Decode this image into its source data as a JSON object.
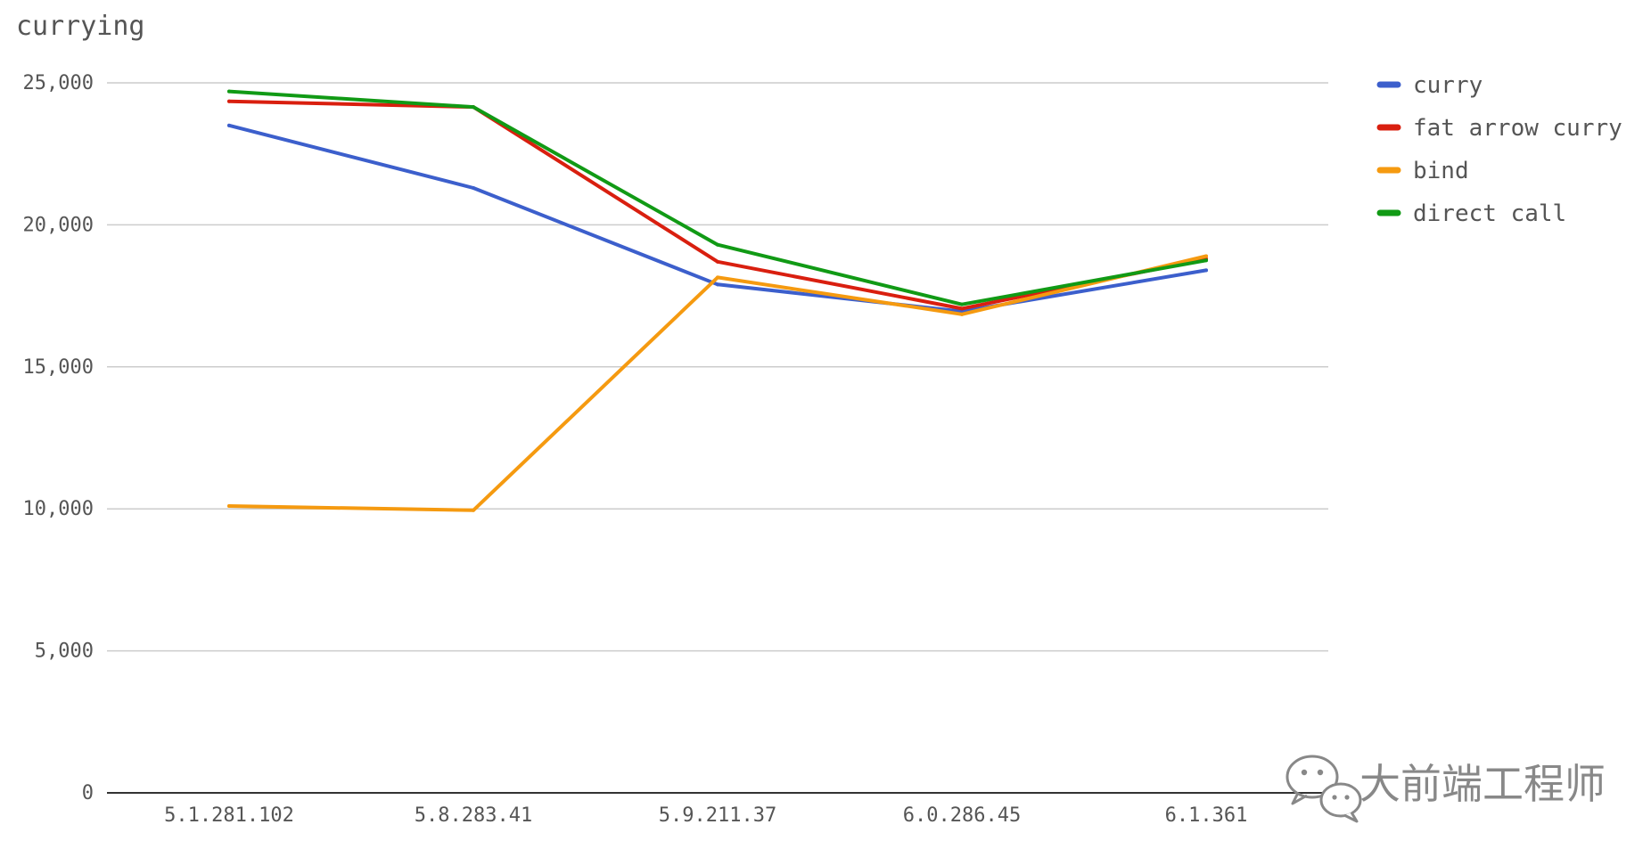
{
  "chart_data": {
    "type": "line",
    "title": "currying",
    "xlabel": "",
    "ylabel": "",
    "categories": [
      "5.1.281.102",
      "5.8.283.41",
      "5.9.211.37",
      "6.0.286.45",
      "6.1.361"
    ],
    "ylim": [
      0,
      25000
    ],
    "yticks": [
      0,
      5000,
      10000,
      15000,
      20000,
      25000
    ],
    "ytick_labels": [
      "0",
      "5,000",
      "10,000",
      "15,000",
      "20,000",
      "25,000"
    ],
    "grid": true,
    "legend_position": "right",
    "series": [
      {
        "name": "curry",
        "color": "#3c5fcc",
        "values": [
          23500,
          21300,
          17900,
          16950,
          18400
        ]
      },
      {
        "name": "fat arrow curry",
        "color": "#d91f0f",
        "values": [
          24350,
          24150,
          18700,
          17050,
          18800
        ]
      },
      {
        "name": "bind",
        "color": "#f59a10",
        "values": [
          10100,
          9950,
          18150,
          16850,
          18900
        ]
      },
      {
        "name": "direct call",
        "color": "#119a15",
        "values": [
          24700,
          24150,
          19300,
          17200,
          18750
        ]
      }
    ]
  },
  "watermark": {
    "text": "大前端工程师",
    "icon": "wechat-icon"
  }
}
